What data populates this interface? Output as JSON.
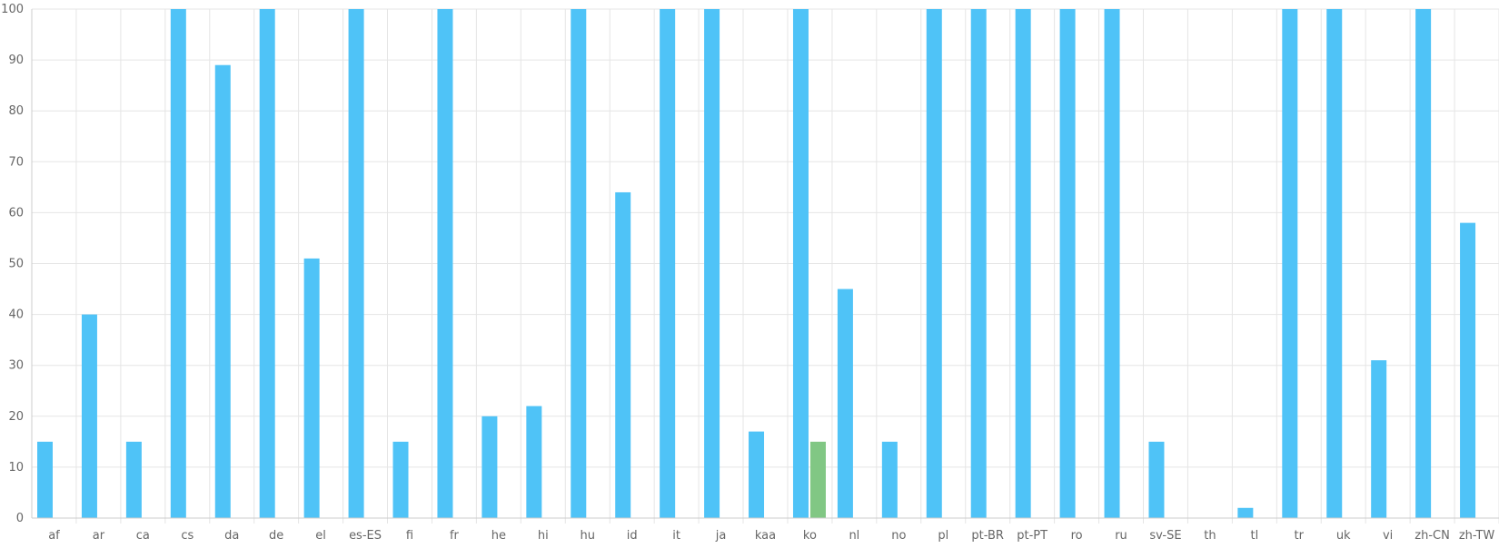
{
  "chart_data": {
    "type": "bar",
    "categories": [
      "af",
      "ar",
      "ca",
      "cs",
      "da",
      "de",
      "el",
      "es-ES",
      "fi",
      "fr",
      "he",
      "hi",
      "hu",
      "id",
      "it",
      "ja",
      "kaa",
      "ko",
      "nl",
      "no",
      "pl",
      "pt-BR",
      "pt-PT",
      "ro",
      "ru",
      "sv-SE",
      "th",
      "tl",
      "tr",
      "uk",
      "vi",
      "zh-CN",
      "zh-TW"
    ],
    "series": [
      {
        "color": "#4fc3f7",
        "values": [
          15,
          40,
          15,
          100,
          89,
          100,
          51,
          100,
          15,
          100,
          20,
          22,
          100,
          64,
          100,
          100,
          17,
          100,
          45,
          15,
          100,
          100,
          100,
          100,
          100,
          15,
          0,
          2,
          100,
          100,
          31,
          100,
          58
        ]
      },
      {
        "color": "#81c784",
        "values": [
          null,
          null,
          null,
          null,
          null,
          null,
          null,
          null,
          null,
          null,
          null,
          null,
          null,
          null,
          null,
          null,
          null,
          15,
          null,
          null,
          null,
          null,
          null,
          null,
          null,
          null,
          null,
          null,
          null,
          null,
          null,
          null,
          null
        ]
      }
    ],
    "yticks": [
      "0",
      "10",
      "20",
      "30",
      "40",
      "50",
      "60",
      "70",
      "80",
      "90",
      "100"
    ],
    "ylim": [
      0,
      100
    ],
    "grid": true,
    "title": "",
    "xlabel": "",
    "ylabel": ""
  }
}
